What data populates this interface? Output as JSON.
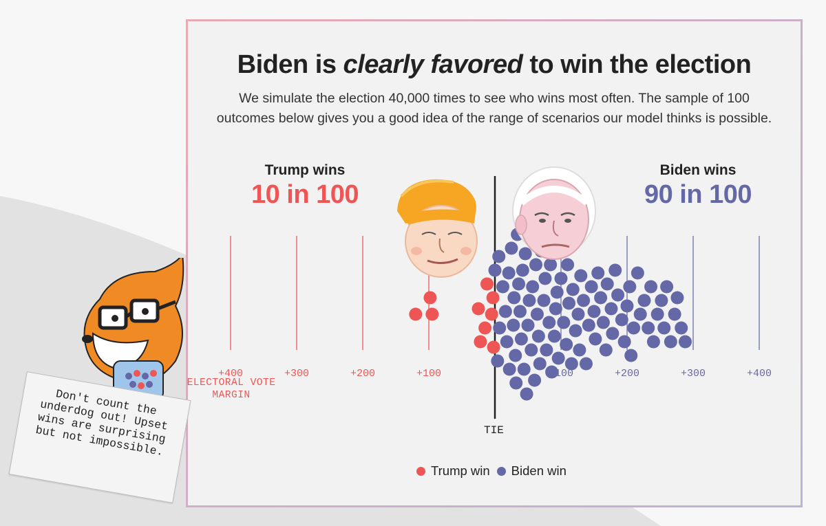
{
  "title": {
    "before": "Biden is ",
    "emphasis": "clearly favored",
    "after": " to win the election"
  },
  "subtitle": "We simulate the election 40,000 times to see who wins most often. The sample of 100 outcomes below gives you a good idea of the range of scenarios our model thinks is possible.",
  "trump": {
    "label": "Trump wins",
    "value": "10 in 100"
  },
  "biden": {
    "label": "Biden wins",
    "value": "90 in 100"
  },
  "colors": {
    "trump": "#ee5655",
    "biden": "#6468a6",
    "trump_line": "#ee6b6a",
    "biden_line": "#7d80b0"
  },
  "chart_data": {
    "type": "scatter",
    "title": "",
    "x_axis_label": "ELECTORAL VOTE MARGIN",
    "center_label": "TIE",
    "xlim": [
      -440,
      440
    ],
    "trump_ticks": [
      {
        "value": -400,
        "label": "+400"
      },
      {
        "value": -300,
        "label": "+300"
      },
      {
        "value": -200,
        "label": "+200"
      },
      {
        "value": -100,
        "label": "+100"
      }
    ],
    "biden_ticks": [
      {
        "value": 100,
        "label": "+100"
      },
      {
        "value": 200,
        "label": "+200"
      },
      {
        "value": 300,
        "label": "+300"
      },
      {
        "value": 400,
        "label": "+400"
      }
    ],
    "trump_margins": [
      -120,
      -95,
      -98,
      -5,
      -3,
      -15,
      -12,
      -22,
      -2,
      -25
    ],
    "biden_margins": [
      0,
      16,
      4,
      7,
      6,
      12,
      18,
      21,
      22,
      25,
      28,
      29,
      31,
      32,
      34,
      36,
      38,
      40,
      42,
      44,
      46,
      48,
      50,
      52,
      55,
      57,
      60,
      62,
      64,
      66,
      68,
      70,
      72,
      74,
      76,
      78,
      82,
      84,
      86,
      90,
      92,
      94,
      96,
      100,
      104,
      108,
      110,
      112,
      116,
      118,
      122,
      126,
      128,
      130,
      134,
      138,
      142,
      146,
      150,
      152,
      156,
      160,
      164,
      168,
      170,
      176,
      178,
      182,
      186,
      192,
      196,
      200,
      204,
      206,
      210,
      216,
      220,
      226,
      232,
      236,
      240,
      246,
      252,
      256,
      260,
      266,
      272,
      276,
      282,
      288
    ],
    "legend": [
      {
        "name": "Trump win",
        "color": "#ee5655"
      },
      {
        "name": "Biden win",
        "color": "#6468a6"
      }
    ]
  },
  "note": "Don't count the underdog out! Upset wins are surprising but not impossible."
}
